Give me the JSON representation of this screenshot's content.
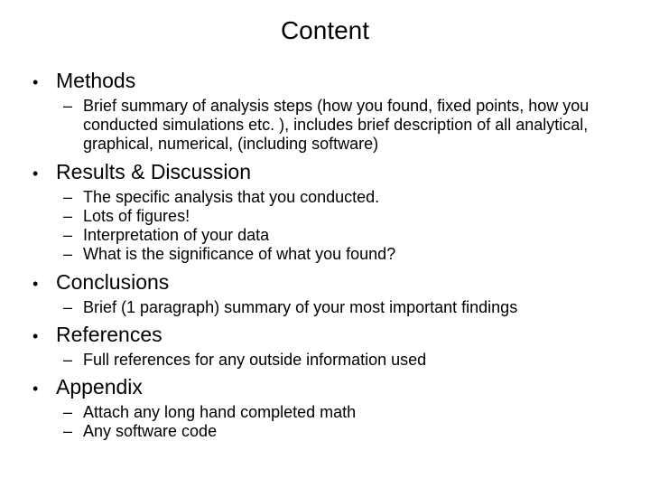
{
  "title": "Content",
  "sections": [
    {
      "label": "Methods",
      "items": [
        "Brief summary of analysis steps (how you found, fixed points, how you conducted simulations etc. ), includes brief description of all analytical, graphical, numerical, (including software)"
      ]
    },
    {
      "label": "Results & Discussion",
      "items": [
        "The specific analysis that you conducted.",
        "Lots of figures!",
        "Interpretation of your data",
        "What is the significance of what you found?"
      ]
    },
    {
      "label": "Conclusions",
      "items": [
        "Brief (1 paragraph) summary of your most important findings"
      ]
    },
    {
      "label": "References",
      "items": [
        "Full references for any outside information used"
      ]
    },
    {
      "label": "Appendix",
      "items": [
        "Attach any long hand completed math",
        "Any software code"
      ]
    }
  ],
  "bullets": {
    "top": "•",
    "sub": "–"
  },
  "colors": {
    "background": "#ffffff",
    "text": "#000000"
  },
  "typography": {
    "title_fontsize": 28,
    "top_fontsize": 23,
    "sub_fontsize": 18,
    "font_family": "Arial"
  }
}
